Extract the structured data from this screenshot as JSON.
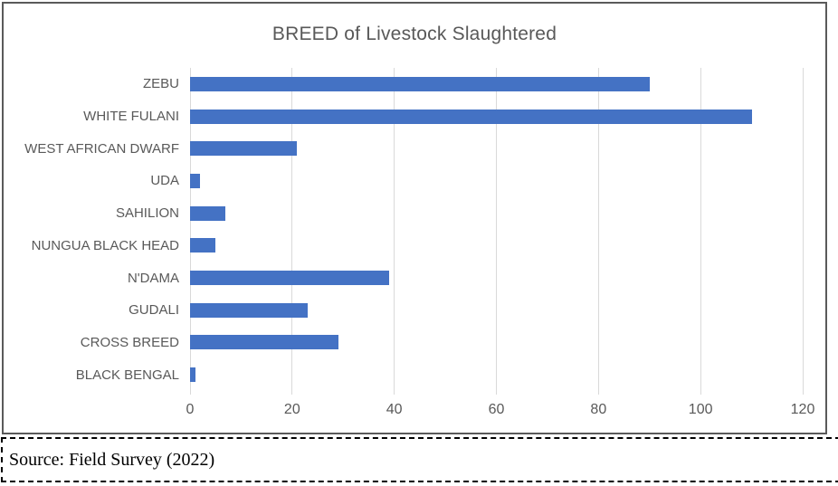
{
  "chart_data": {
    "type": "bar",
    "orientation": "horizontal",
    "title": "BREED of Livestock Slaughtered",
    "categories": [
      "ZEBU",
      "WHITE FULANI",
      "WEST AFRICAN DWARF",
      "UDA",
      "SAHILION",
      "NUNGUA BLACK HEAD",
      "N'DAMA",
      "GUDALI",
      "CROSS BREED",
      "BLACK BENGAL"
    ],
    "values": [
      90,
      110,
      21,
      2,
      7,
      5,
      39,
      23,
      29,
      1
    ],
    "xlabel": "",
    "ylabel": "",
    "xlim": [
      0,
      120
    ],
    "x_ticks": [
      0,
      20,
      40,
      60,
      80,
      100,
      120
    ],
    "grid": true,
    "legend": "none",
    "bar_color": "#4472C4",
    "gridline_color": "#D9D9D9",
    "label_color": "#595959",
    "title_color": "#595959"
  },
  "source": {
    "text": "Source: Field Survey (2022)"
  }
}
